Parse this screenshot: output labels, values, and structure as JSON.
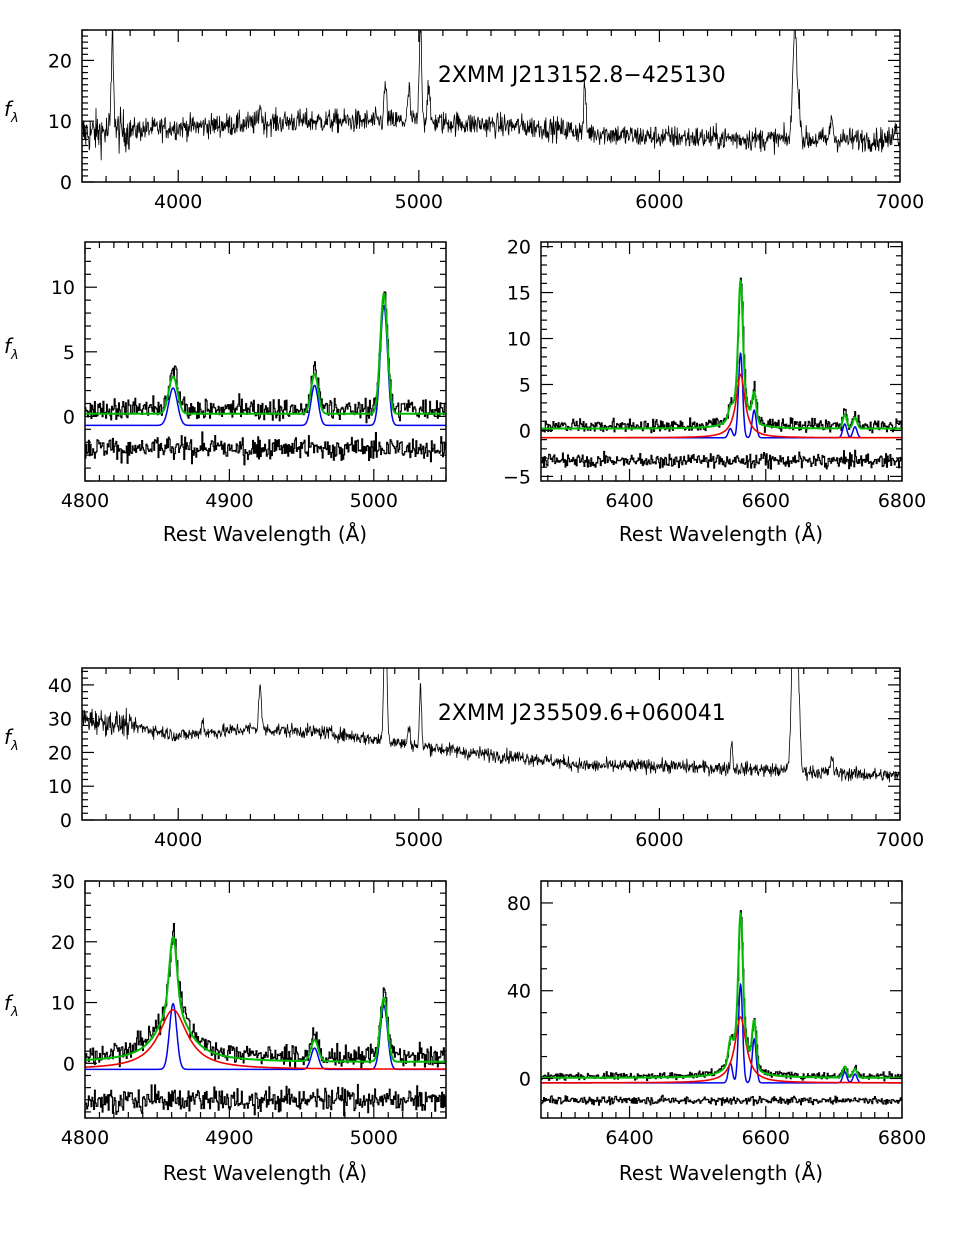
{
  "figure": {
    "x_axis_title": "Rest Wavelength (Å)",
    "y_axis_title": "f",
    "y_axis_subscript": "λ"
  },
  "colors": {
    "data": "#000000",
    "total_model": "#00bb00",
    "narrow_components": "#0000ee",
    "broad_component": "#ee0000"
  },
  "chart_data": [
    {
      "id": "obj1-full",
      "type": "line",
      "title": "2XMM J213152.8−425130",
      "xlim": [
        3600,
        7000
      ],
      "ylim": [
        0,
        25
      ],
      "xticks": [
        4000,
        5000,
        6000,
        7000
      ],
      "yticks": [
        0,
        10,
        20
      ],
      "continuum": [
        [
          3600,
          8
        ],
        [
          4000,
          9
        ],
        [
          4500,
          10
        ],
        [
          5000,
          10
        ],
        [
          5500,
          9
        ],
        [
          5900,
          7.5
        ],
        [
          6500,
          7
        ],
        [
          7000,
          7
        ]
      ],
      "noise": 1.4,
      "lines": [
        [
          3727,
          15,
          5
        ],
        [
          4340,
          3,
          5
        ],
        [
          4861,
          6,
          5
        ],
        [
          4959,
          5,
          5
        ],
        [
          5007,
          16,
          5
        ],
        [
          5040,
          6,
          5
        ],
        [
          5690,
          8,
          4
        ],
        [
          6563,
          20,
          8
        ],
        [
          6583,
          5,
          5
        ],
        [
          6716,
          4,
          5
        ],
        [
          6980,
          3,
          5
        ]
      ]
    },
    {
      "id": "obj1-hbeta",
      "type": "line",
      "xlim": [
        4800,
        5050
      ],
      "ylim": [
        -5,
        13.5
      ],
      "xticks": [
        4800,
        4900,
        5000
      ],
      "yticks": [
        0,
        5,
        10
      ],
      "baseline": -0.7,
      "continuum_level": 0.2,
      "residual_offset": -2.5,
      "noise": 0.6,
      "narrow": [
        [
          4861,
          2.9,
          3
        ],
        [
          4959,
          3.1,
          2.5
        ],
        [
          5007,
          9.3,
          2.5
        ]
      ],
      "broad": []
    },
    {
      "id": "obj1-halpha",
      "type": "line",
      "xlim": [
        6270,
        6800
      ],
      "ylim": [
        -5.5,
        20.5
      ],
      "xticks": [
        6400,
        6600,
        6800
      ],
      "yticks": [
        -5,
        0,
        5,
        10,
        15,
        20
      ],
      "baseline": -0.8,
      "continuum_level": 0.2,
      "residual_offset": -3.3,
      "noise": 0.5,
      "narrow": [
        [
          6548,
          1.0,
          3
        ],
        [
          6563,
          9.2,
          3
        ],
        [
          6583,
          3.0,
          3
        ],
        [
          6716,
          1.5,
          3
        ],
        [
          6731,
          1.2,
          3
        ]
      ],
      "broad": [
        [
          6563,
          6.9,
          8
        ]
      ]
    },
    {
      "id": "obj2-full",
      "type": "line",
      "title": "2XMM J235509.6+060041",
      "xlim": [
        3600,
        7000
      ],
      "ylim": [
        0,
        45
      ],
      "xticks": [
        4000,
        5000,
        6000,
        7000
      ],
      "yticks": [
        0,
        10,
        20,
        30,
        40
      ],
      "continuum": [
        [
          3600,
          30
        ],
        [
          3800,
          28
        ],
        [
          4000,
          25
        ],
        [
          4300,
          27
        ],
        [
          4600,
          26
        ],
        [
          4800,
          24
        ],
        [
          5000,
          22
        ],
        [
          5200,
          20
        ],
        [
          5500,
          18
        ],
        [
          5700,
          16
        ],
        [
          6000,
          16
        ],
        [
          6400,
          15
        ],
        [
          7000,
          13
        ]
      ],
      "noise": 1.5,
      "lines": [
        [
          4101,
          4,
          5
        ],
        [
          4340,
          14,
          5
        ],
        [
          4861,
          40,
          6
        ],
        [
          4959,
          6,
          4
        ],
        [
          5007,
          18,
          4
        ],
        [
          6300,
          8,
          4
        ],
        [
          6563,
          80,
          10
        ],
        [
          6583,
          8,
          4
        ],
        [
          6716,
          5,
          5
        ]
      ]
    },
    {
      "id": "obj2-hbeta",
      "type": "line",
      "xlim": [
        4800,
        5050
      ],
      "ylim": [
        -9,
        30
      ],
      "xticks": [
        4800,
        4900,
        5000
      ],
      "yticks": [
        0,
        10,
        20,
        30
      ],
      "baseline": -1,
      "continuum_level": 0.2,
      "residual_offset": -6,
      "noise": 1.3,
      "narrow": [
        [
          4861,
          10.8,
          2.5
        ],
        [
          4959,
          3.5,
          2.5
        ],
        [
          5007,
          10.5,
          2.5
        ]
      ],
      "broad": [
        [
          4861,
          9.8,
          12
        ]
      ]
    },
    {
      "id": "obj2-halpha",
      "type": "line",
      "xlim": [
        6270,
        6800
      ],
      "ylim": [
        -18,
        90
      ],
      "xticks": [
        6400,
        6600,
        6800
      ],
      "yticks": [
        0,
        40,
        80
      ],
      "baseline": -2,
      "continuum_level": 0.3,
      "residual_offset": -10,
      "noise": 1.2,
      "narrow": [
        [
          6548,
          9,
          3
        ],
        [
          6563,
          45,
          3
        ],
        [
          6583,
          20,
          3
        ],
        [
          6716,
          5,
          3
        ],
        [
          6731,
          4,
          3
        ]
      ],
      "broad": [
        [
          6563,
          30,
          10
        ]
      ]
    }
  ]
}
